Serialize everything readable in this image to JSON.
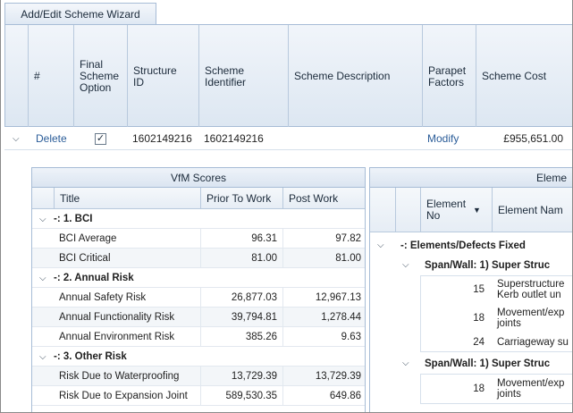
{
  "wizard_tab": "Add/Edit Scheme Wizard",
  "main_table": {
    "headers": {
      "num": "#",
      "final": "Final Scheme Option",
      "structure_id": "Structure ID",
      "scheme_identifier": "Scheme Identifier",
      "scheme_description": "Scheme Description",
      "parapet": "Parapet Factors",
      "cost": "Scheme Cost"
    },
    "row": {
      "delete": "Delete",
      "final_checked": "✓",
      "structure_id": "1602149216",
      "scheme_identifier": "1602149216",
      "scheme_description": "",
      "parapet": "Modify",
      "cost": "£955,651.00"
    }
  },
  "vfm": {
    "title": "VfM Scores",
    "headers": {
      "title": "Title",
      "prior": "Prior To Work",
      "post": "Post Work"
    },
    "groups": [
      {
        "label": "-: 1. BCI",
        "rows": [
          {
            "title": "BCI Average",
            "prior": "96.31",
            "post": "97.82"
          },
          {
            "title": "BCI Critical",
            "prior": "81.00",
            "post": "81.00"
          }
        ]
      },
      {
        "label": "-: 2. Annual Risk",
        "rows": [
          {
            "title": "Annual Safety Risk",
            "prior": "26,877.03",
            "post": "12,967.13"
          },
          {
            "title": "Annual Functionality Risk",
            "prior": "39,794.81",
            "post": "1,278.44"
          },
          {
            "title": "Annual Environment Risk",
            "prior": "385.26",
            "post": "9.63"
          }
        ]
      },
      {
        "label": "-: 3. Other Risk",
        "rows": [
          {
            "title": "Risk Due to Waterproofing",
            "prior": "13,729.39",
            "post": "13,729.39"
          },
          {
            "title": "Risk Due to Expansion Joint",
            "prior": "589,530.35",
            "post": "649.86"
          }
        ]
      }
    ]
  },
  "elements": {
    "title": "Eleme",
    "headers": {
      "element_no": "Element No",
      "element_name": "Element Nam"
    },
    "group": "-: Elements/Defects Fixed",
    "span1": "Span/Wall: 1) Super Struc",
    "span1_rows": [
      {
        "no": "15",
        "name": "Superstructure Kerb outlet un"
      },
      {
        "no": "18",
        "name": "Movement/exp joints"
      },
      {
        "no": "24",
        "name": "Carriageway su"
      }
    ],
    "span2": "Span/Wall: 1) Super Struc",
    "span2_rows": [
      {
        "no": "18",
        "name": "Movement/exp joints"
      }
    ]
  }
}
